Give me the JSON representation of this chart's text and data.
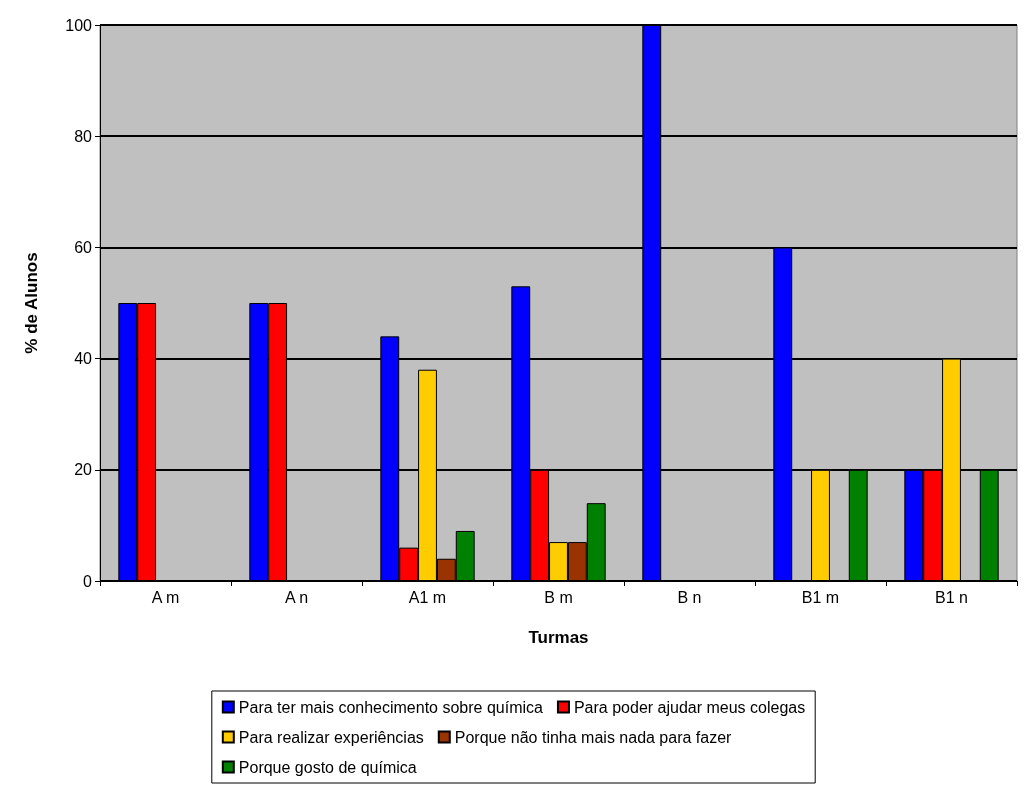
{
  "chart_data": {
    "type": "bar",
    "xlabel": "Turmas",
    "ylabel": "% de Alunos",
    "categories": [
      "A m",
      "A n",
      "A1 m",
      "B m",
      "B n",
      "B1 m",
      "B1 n"
    ],
    "series": [
      {
        "name": "Para ter mais conhecimento sobre química",
        "color": "#0000ff",
        "values": [
          50,
          50,
          44,
          53,
          100,
          60,
          20
        ]
      },
      {
        "name": "Para poder ajudar meus colegas",
        "color": "#ff0000",
        "values": [
          50,
          50,
          6,
          20,
          0,
          0,
          20
        ]
      },
      {
        "name": "Para realizar experiências",
        "color": "#ffcc00",
        "values": [
          0,
          0,
          38,
          7,
          0,
          20,
          40
        ]
      },
      {
        "name": "Porque não tinha mais nada para fazer",
        "color": "#993300",
        "values": [
          0,
          0,
          4,
          7,
          0,
          0,
          0
        ]
      },
      {
        "name": "Porque gosto de química",
        "color": "#008000",
        "values": [
          0,
          0,
          9,
          14,
          0,
          20,
          20
        ]
      }
    ],
    "ylim": [
      0,
      100
    ],
    "yticks": [
      0,
      20,
      40,
      60,
      80,
      100
    ],
    "grid": "y",
    "legend": "bottom"
  }
}
